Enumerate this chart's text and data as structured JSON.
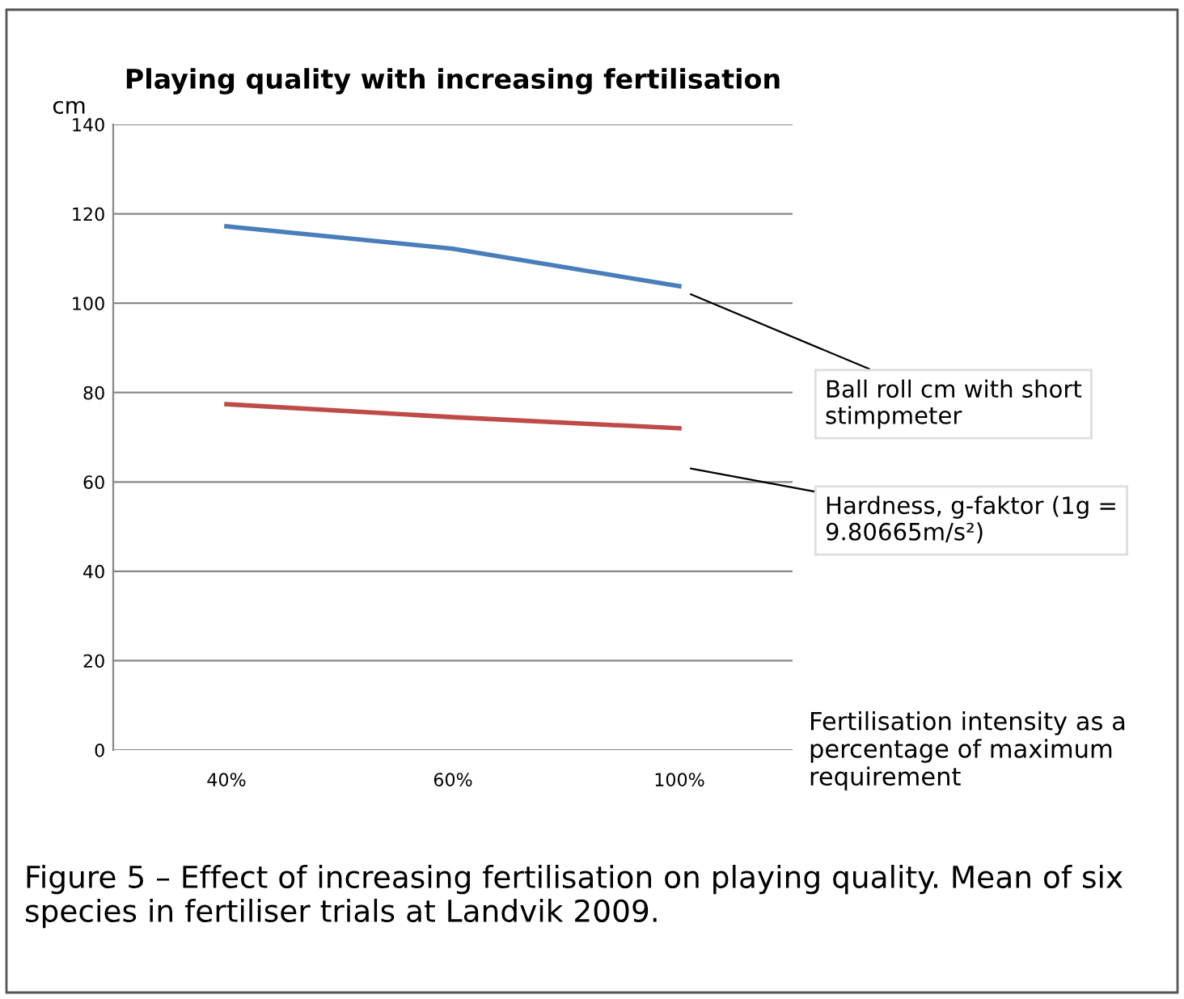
{
  "chart_data": {
    "type": "line",
    "title": "Playing quality with increasing fertilisation",
    "ylabel": "cm",
    "xlabel": "Fertilisation intensity as a percentage of maximum requirement",
    "categories": [
      "40%",
      "60%",
      "100%"
    ],
    "series": [
      {
        "name": "Ball roll cm with short stimpmeter",
        "color": "#4a7ebb",
        "values": [
          117.2,
          112.2,
          103.8
        ]
      },
      {
        "name": "Hardness, g-faktor (1g = 9.80665m/s²)",
        "color": "#be4b48",
        "values": [
          77.4,
          74.5,
          72.0
        ]
      }
    ],
    "ylim": [
      0,
      140
    ],
    "yticks": [
      0,
      20,
      40,
      60,
      80,
      100,
      120,
      140
    ],
    "grid": "y",
    "marker": "none",
    "line_style": "solid",
    "annotations": [
      "Figure 5 – Effect of increasing fertilisation on playing quality. Mean of six species in fertiliser trials at Landvik 2009."
    ]
  }
}
